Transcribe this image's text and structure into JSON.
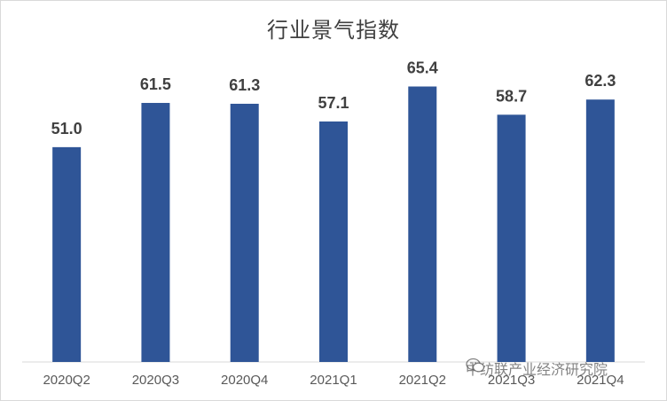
{
  "chart_data": {
    "type": "bar",
    "title": "行业景气指数",
    "categories": [
      "2020Q2",
      "2020Q3",
      "2020Q4",
      "2021Q1",
      "2021Q2",
      "2021Q3",
      "2021Q4"
    ],
    "series": [
      {
        "values": [
          51.0,
          61.5,
          61.3,
          57.1,
          65.4,
          58.7,
          62.3
        ]
      }
    ],
    "value_labels": [
      "51.0",
      "61.5",
      "61.3",
      "57.1",
      "65.4",
      "58.7",
      "62.3"
    ],
    "ylim": [
      0,
      75
    ],
    "grid": false,
    "legend": "none",
    "bar_color": "#2f5597"
  },
  "watermark": {
    "icon": "wechat-icon",
    "text": "中纺联产业经济研究院"
  }
}
